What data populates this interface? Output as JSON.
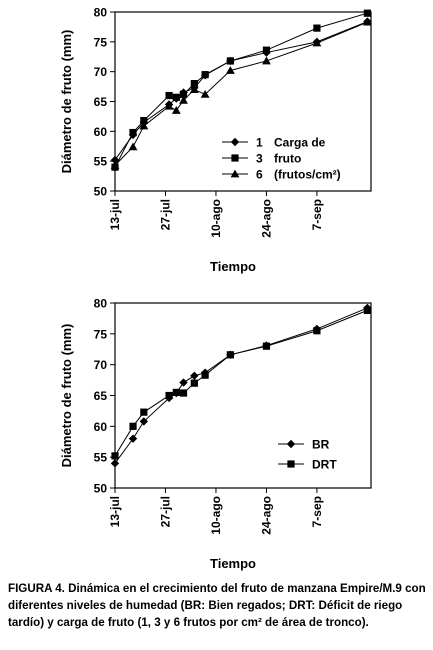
{
  "chart_data": [
    {
      "type": "line",
      "ylabel": "Diámetro de fruto (mm)",
      "xlabel": "Tiempo",
      "ylim": [
        50,
        80
      ],
      "yticks": [
        50,
        55,
        60,
        65,
        70,
        75,
        80
      ],
      "xticks": [
        {
          "date": "2000-07-13",
          "label": "13-jul"
        },
        {
          "date": "2000-07-27",
          "label": "27-jul"
        },
        {
          "date": "2000-08-10",
          "label": "10-ago"
        },
        {
          "date": "2000-08-24",
          "label": "24-ago"
        },
        {
          "date": "2000-09-07",
          "label": "7-sep"
        }
      ],
      "xlim": [
        "2000-07-13",
        "2000-09-22"
      ],
      "legend": {
        "placement": "bottom-right",
        "entries": [
          {
            "marker": "diamond",
            "number": "1",
            "text": "Carga de"
          },
          {
            "marker": "square",
            "number": "3",
            "text": "fruto"
          },
          {
            "marker": "triangle",
            "number": "6",
            "text": "(frutos/cm²)"
          }
        ]
      },
      "series": [
        {
          "marker": "diamond",
          "x": [
            "2000-07-13",
            "2000-07-18",
            "2000-07-21",
            "2000-07-28",
            "2000-07-30",
            "2000-08-01",
            "2000-08-04",
            "2000-08-07",
            "2000-08-14",
            "2000-08-24",
            "2000-09-07",
            "2000-09-21"
          ],
          "y": [
            55.2,
            59.4,
            61.5,
            64.5,
            65.5,
            66.5,
            67.3,
            69.4,
            71.8,
            73.2,
            75.0,
            78.4
          ]
        },
        {
          "marker": "square",
          "x": [
            "2000-07-13",
            "2000-07-18",
            "2000-07-21",
            "2000-07-28",
            "2000-07-30",
            "2000-08-01",
            "2000-08-04",
            "2000-08-07",
            "2000-08-14",
            "2000-08-24",
            "2000-09-07",
            "2000-09-21"
          ],
          "y": [
            54.0,
            59.8,
            61.8,
            66.0,
            65.7,
            66.2,
            68.0,
            69.5,
            71.8,
            73.6,
            77.3,
            79.8
          ]
        },
        {
          "marker": "triangle",
          "x": [
            "2000-07-13",
            "2000-07-18",
            "2000-07-21",
            "2000-07-28",
            "2000-07-30",
            "2000-08-01",
            "2000-08-04",
            "2000-08-07",
            "2000-08-14",
            "2000-08-24",
            "2000-09-07",
            "2000-09-21"
          ],
          "y": [
            54.3,
            57.4,
            60.9,
            64.2,
            63.5,
            65.2,
            67.0,
            66.2,
            70.2,
            71.8,
            74.8,
            78.3
          ]
        }
      ]
    },
    {
      "type": "line",
      "ylabel": "Diámetro de fruto (mm)",
      "xlabel": "Tiempo",
      "ylim": [
        50,
        80
      ],
      "yticks": [
        50,
        55,
        60,
        65,
        70,
        75,
        80
      ],
      "xticks": [
        {
          "date": "2000-07-13",
          "label": "13-jul"
        },
        {
          "date": "2000-07-27",
          "label": "27-jul"
        },
        {
          "date": "2000-08-10",
          "label": "10-ago"
        },
        {
          "date": "2000-08-24",
          "label": "24-ago"
        },
        {
          "date": "2000-09-07",
          "label": "7-sep"
        }
      ],
      "xlim": [
        "2000-07-13",
        "2000-09-22"
      ],
      "legend": {
        "placement": "bottom-right",
        "entries": [
          {
            "marker": "diamond",
            "text": "BR"
          },
          {
            "marker": "square",
            "text": "DRT"
          }
        ]
      },
      "series": [
        {
          "name": "BR",
          "marker": "diamond",
          "x": [
            "2000-07-13",
            "2000-07-18",
            "2000-07-21",
            "2000-07-28",
            "2000-07-30",
            "2000-08-01",
            "2000-08-04",
            "2000-08-07",
            "2000-08-14",
            "2000-08-24",
            "2000-09-07",
            "2000-09-21"
          ],
          "y": [
            54.0,
            58.0,
            60.8,
            64.6,
            65.4,
            67.1,
            68.2,
            68.7,
            71.6,
            73.1,
            75.8,
            79.2
          ]
        },
        {
          "name": "DRT",
          "marker": "square",
          "x": [
            "2000-07-13",
            "2000-07-18",
            "2000-07-21",
            "2000-07-28",
            "2000-07-30",
            "2000-08-01",
            "2000-08-04",
            "2000-08-07",
            "2000-08-14",
            "2000-08-24",
            "2000-09-07",
            "2000-09-21"
          ],
          "y": [
            55.2,
            60.0,
            62.3,
            65.0,
            65.5,
            65.4,
            67.0,
            68.3,
            71.6,
            73.0,
            75.5,
            78.8
          ]
        }
      ]
    }
  ],
  "caption": {
    "label": "FIGURA 4.",
    "text": "Dinámica en el crecimiento del fruto de manzana Empire/M.9 con diferentes niveles de humedad (BR: Bien regados; DRT: Déficit de riego tardío) y carga de fruto (1, 3 y 6 frutos por cm² de área de tronco)."
  }
}
